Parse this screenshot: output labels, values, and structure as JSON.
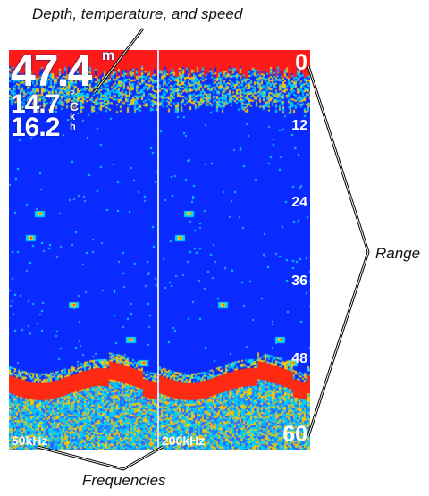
{
  "callouts": {
    "top": "Depth, temperature, and speed",
    "right": "Range",
    "bottom": "Frequencies"
  },
  "readouts": {
    "depth": "47.4",
    "depth_unit": "m",
    "temperature": "14.7",
    "temperature_unit_top": "°",
    "temperature_unit_bottom": "C",
    "speed": "16.2",
    "speed_unit_top": "k",
    "speed_unit_bottom": "h"
  },
  "range_scale": [
    "0",
    "12",
    "24",
    "36",
    "48",
    "60"
  ],
  "frequencies": [
    "50kHz",
    "200kHz"
  ],
  "colors": {
    "water": "#0a2bff",
    "surface_clutter": "#ff1a1a",
    "bottom_return": "#ff2a12",
    "return_mid": "#ffd000",
    "return_weak": "#00d6ff"
  }
}
